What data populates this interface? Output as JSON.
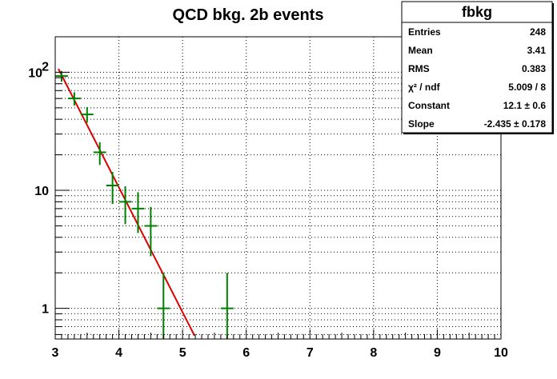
{
  "chart_data": {
    "type": "scatter",
    "title": "QCD bkg. 2b events",
    "xlabel": "",
    "ylabel": "",
    "xlim": [
      3,
      10
    ],
    "ylim": [
      0.55,
      200
    ],
    "ylog": true,
    "grid": true,
    "x_ticks": [
      "3",
      "4",
      "5",
      "6",
      "7",
      "8",
      "9",
      "10"
    ],
    "y_ticks": [
      {
        "value": 1,
        "label": "1"
      },
      {
        "value": 10,
        "label": "10"
      },
      {
        "value": 100,
        "label": "10",
        "sup": "2"
      }
    ],
    "series": [
      {
        "style": "errorbars",
        "color": "#008000",
        "points": [
          {
            "x": 3.1,
            "y": 93
          },
          {
            "x": 3.3,
            "y": 60
          },
          {
            "x": 3.5,
            "y": 44
          },
          {
            "x": 3.7,
            "y": 21
          },
          {
            "x": 3.9,
            "y": 11
          },
          {
            "x": 4.1,
            "y": 8
          },
          {
            "x": 4.3,
            "y": 7
          },
          {
            "x": 4.5,
            "y": 5
          },
          {
            "x": 4.7,
            "y": 1
          },
          {
            "x": 5.7,
            "y": 1
          }
        ]
      },
      {
        "style": "fit-line",
        "color": "#dd0000",
        "function": "exp(Constant + Slope*x)",
        "constant": 12.1,
        "slope": -2.435,
        "x_range": [
          3.05,
          5.3
        ]
      }
    ],
    "stats_box": {
      "title": "fbkg",
      "placement": "top-right",
      "rows": [
        {
          "label": "Entries",
          "value": "248"
        },
        {
          "label": "Mean",
          "value": "3.41"
        },
        {
          "label": "RMS",
          "value": "0.383"
        },
        {
          "label": "χ² / ndf",
          "value": "5.009 / 8"
        },
        {
          "label": "Constant",
          "value": "12.1 ± 0.6"
        },
        {
          "label": "Slope",
          "value": "-2.435 ± 0.178"
        }
      ]
    }
  }
}
